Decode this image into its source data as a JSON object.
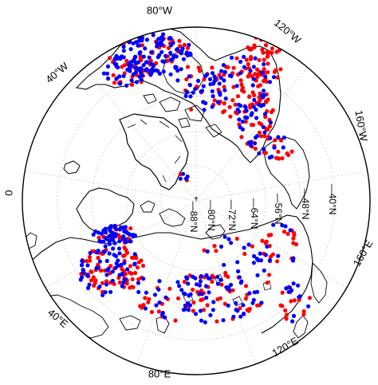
{
  "map": {
    "projection": "north-polar-stereographic",
    "center": "North Pole",
    "graticule_style": "dotted",
    "coastline_color": "#000000",
    "frame_color": "#000000",
    "series": [
      {
        "color": "#ff0000"
      },
      {
        "color": "#0000ff"
      }
    ],
    "longitude_labels": [
      {
        "text": "80°W"
      },
      {
        "text": "120°W"
      },
      {
        "text": "160°W"
      },
      {
        "text": "160°E"
      },
      {
        "text": "120°E"
      },
      {
        "text": "80°E"
      },
      {
        "text": "40°E"
      },
      {
        "text": "0"
      },
      {
        "text": "40°W"
      }
    ],
    "latitude_labels": [
      {
        "text": "88°N"
      },
      {
        "text": "80°N"
      },
      {
        "text": "72°N"
      },
      {
        "text": "64°N"
      },
      {
        "text": "56°N"
      },
      {
        "text": "48°N"
      },
      {
        "text": "40°N"
      }
    ]
  }
}
